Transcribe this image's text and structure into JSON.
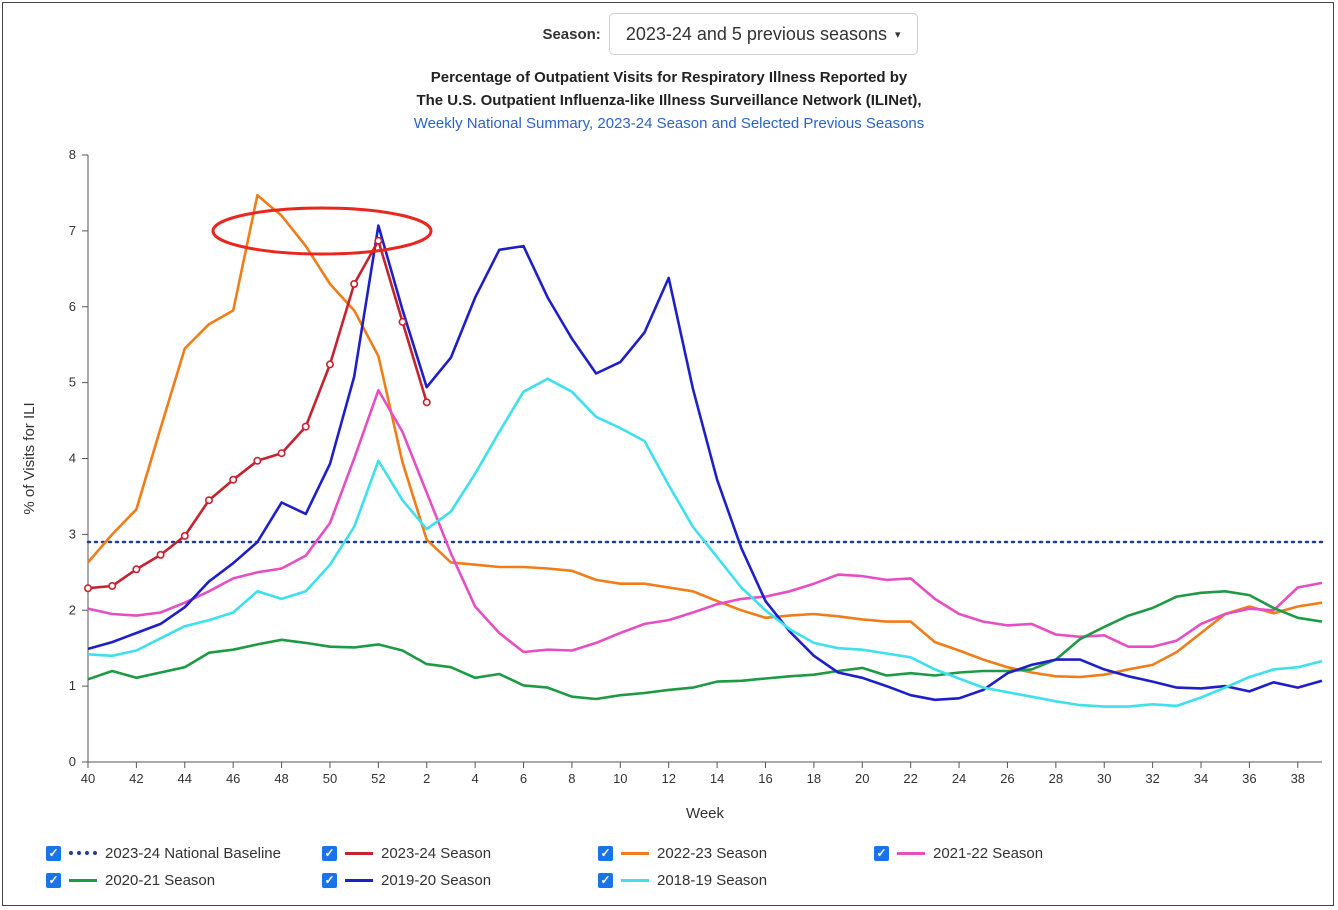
{
  "season_selector": {
    "label": "Season:",
    "value": "2023-24 and 5 previous seasons",
    "caret": "▾"
  },
  "chart_data": {
    "type": "line",
    "title_line1": "Percentage of Outpatient Visits for Respiratory Illness Reported by",
    "title_line2": "The U.S. Outpatient Influenza-like Illness Surveillance Network (ILINet),",
    "subtitle": "Weekly National Summary, 2023-24 Season and Selected Previous Seasons",
    "xlabel": "Week",
    "ylabel": "% of Visits for ILI",
    "ylim": [
      0,
      8
    ],
    "yticks": [
      0,
      1,
      2,
      3,
      4,
      5,
      6,
      7,
      8
    ],
    "xticks": [
      "40",
      "42",
      "44",
      "46",
      "48",
      "50",
      "52",
      "2",
      "4",
      "6",
      "8",
      "10",
      "12",
      "14",
      "16",
      "18",
      "20",
      "22",
      "24",
      "26",
      "28",
      "30",
      "32",
      "34",
      "36",
      "38"
    ],
    "baseline": {
      "name": "2023-24 National Baseline",
      "value": 2.9,
      "color": "#1f3f8f"
    },
    "annotation": "red ellipse highlighting peak values near 7%",
    "series": [
      {
        "name": "2022-23 Season",
        "color": "#f07d1a",
        "values": [
          2.63,
          3.0,
          3.33,
          4.4,
          5.45,
          5.77,
          5.95,
          7.47,
          7.2,
          6.8,
          6.3,
          5.95,
          5.35,
          3.95,
          2.93,
          2.63,
          2.6,
          2.57,
          2.57,
          2.55,
          2.52,
          2.4,
          2.35,
          2.35,
          2.3,
          2.25,
          2.12,
          2.0,
          1.9,
          1.93,
          1.95,
          1.92,
          1.88,
          1.85,
          1.85,
          1.58,
          1.47,
          1.35,
          1.25,
          1.18,
          1.13,
          1.12,
          1.15,
          1.22,
          1.28,
          1.45,
          1.7,
          1.95,
          2.05,
          1.96,
          2.05,
          2.1
        ]
      },
      {
        "name": "2021-22 Season",
        "color": "#e64fc2",
        "values": [
          2.02,
          1.95,
          1.93,
          1.97,
          2.1,
          2.25,
          2.42,
          2.5,
          2.55,
          2.72,
          3.15,
          4.0,
          4.9,
          4.35,
          3.55,
          2.75,
          2.05,
          1.7,
          1.45,
          1.48,
          1.47,
          1.57,
          1.7,
          1.82,
          1.87,
          1.97,
          2.08,
          2.15,
          2.18,
          2.25,
          2.35,
          2.47,
          2.45,
          2.4,
          2.42,
          2.15,
          1.95,
          1.85,
          1.8,
          1.82,
          1.68,
          1.65,
          1.67,
          1.52,
          1.52,
          1.6,
          1.82,
          1.95,
          2.02,
          2.0,
          2.3,
          2.36
        ]
      },
      {
        "name": "2020-21 Season",
        "color": "#1e9a45",
        "values": [
          1.09,
          1.2,
          1.11,
          1.18,
          1.25,
          1.44,
          1.48,
          1.55,
          1.61,
          1.57,
          1.52,
          1.51,
          1.55,
          1.47,
          1.29,
          1.25,
          1.11,
          1.16,
          1.01,
          0.98,
          0.86,
          0.83,
          0.88,
          0.91,
          0.95,
          0.98,
          1.06,
          1.07,
          1.1,
          1.13,
          1.15,
          1.2,
          1.24,
          1.14,
          1.17,
          1.14,
          1.18,
          1.2,
          1.2,
          1.22,
          1.35,
          1.62,
          1.78,
          1.93,
          2.03,
          2.18,
          2.23,
          2.25,
          2.2,
          2.03,
          1.9,
          1.85
        ]
      },
      {
        "name": "2019-20 Season",
        "color": "#1f1fc8",
        "values": [
          1.49,
          1.58,
          1.7,
          1.82,
          2.04,
          2.38,
          2.62,
          2.9,
          3.42,
          3.27,
          3.93,
          5.08,
          7.07,
          5.96,
          4.94,
          5.33,
          6.12,
          6.75,
          6.8,
          6.12,
          5.58,
          5.12,
          5.27,
          5.66,
          6.38,
          4.92,
          3.72,
          2.82,
          2.12,
          1.72,
          1.4,
          1.18,
          1.11,
          1.0,
          0.88,
          0.82,
          0.84,
          0.95,
          1.17,
          1.28,
          1.35,
          1.35,
          1.22,
          1.13,
          1.06,
          0.98,
          0.97,
          1.0,
          0.93,
          1.05,
          0.98,
          1.07
        ]
      },
      {
        "name": "2018-19 Season",
        "color": "#3fe0ee",
        "values": [
          1.42,
          1.4,
          1.47,
          1.63,
          1.79,
          1.87,
          1.97,
          2.25,
          2.15,
          2.25,
          2.6,
          3.1,
          3.97,
          3.45,
          3.07,
          3.3,
          3.8,
          4.35,
          4.88,
          5.05,
          4.88,
          4.55,
          4.4,
          4.23,
          3.65,
          3.1,
          2.7,
          2.3,
          2.0,
          1.75,
          1.57,
          1.5,
          1.48,
          1.43,
          1.38,
          1.22,
          1.1,
          0.98,
          0.92,
          0.86,
          0.8,
          0.75,
          0.73,
          0.73,
          0.76,
          0.74,
          0.85,
          0.98,
          1.12,
          1.22,
          1.25,
          1.33
        ]
      },
      {
        "name": "2023-24 Season",
        "color": "#c4232f",
        "markers": true,
        "values": [
          2.29,
          2.32,
          2.54,
          2.73,
          2.98,
          3.45,
          3.72,
          3.97,
          4.07,
          4.42,
          5.24,
          6.3,
          6.87,
          5.8,
          4.74
        ]
      }
    ]
  },
  "legend": [
    {
      "label": "2023-24 National Baseline",
      "color": "#1f3f8f",
      "dotted": true
    },
    {
      "label": "2023-24 Season",
      "color": "#c4232f"
    },
    {
      "label": "2022-23 Season",
      "color": "#f07d1a"
    },
    {
      "label": "2021-22 Season",
      "color": "#e64fc2"
    },
    {
      "label": "2020-21 Season",
      "color": "#1e9a45"
    },
    {
      "label": "2019-20 Season",
      "color": "#1f1fc8"
    },
    {
      "label": "2018-19 Season",
      "color": "#3fe0ee"
    }
  ]
}
